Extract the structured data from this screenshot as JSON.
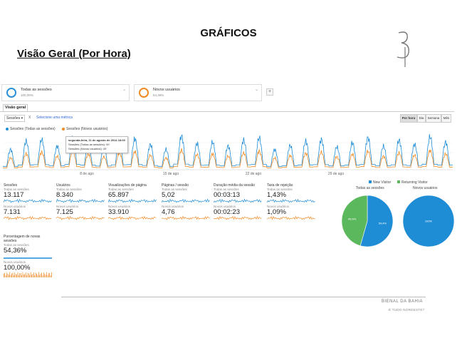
{
  "slide": {
    "title": "GRÁFICOS",
    "subtitle": "Visão Geral (Por Hora)"
  },
  "segments": [
    {
      "name": "Todas as sessões",
      "pct": "100,00%"
    },
    {
      "name": "Novos usuários",
      "pct": "54,36%"
    }
  ],
  "segment_add": "+",
  "overview_tab": "Visão geral",
  "controls": {
    "metric": "Sessões",
    "vs": "X",
    "add_metric": "Selecione uma métrica",
    "time_buttons": [
      "Por hora",
      "Dia",
      "Semana",
      "Mês"
    ],
    "active_time": "Por hora"
  },
  "legend": [
    {
      "label": "Sessões (Todas as sessões)",
      "color": "#1f8dd6"
    },
    {
      "label": "Sessões (Novos usuários)",
      "color": "#f08a24"
    }
  ],
  "tooltip": {
    "title": "segunda-feira, 11 de agosto de 2014 18:00",
    "line1": "Sessões (Todas as sessões): 00",
    "line2": "Sessões (Novos usuários): 49"
  },
  "chart_data": {
    "type": "line",
    "x_ticks": [
      "8 de ago",
      "15 de ago",
      "22 de ago",
      "29 de ago"
    ],
    "series": [
      {
        "name": "Sessões (Todas as sessões)",
        "color": "#1f8dd6",
        "approx_daily_peaks": [
          60,
          85,
          90,
          70,
          95,
          80,
          65,
          88,
          92,
          75,
          60,
          100,
          78,
          82,
          70,
          88,
          95,
          60,
          72,
          85,
          90,
          68,
          80,
          95,
          70,
          88,
          75,
          98,
          82
        ]
      },
      {
        "name": "Sessões (Novos usuários)",
        "color": "#f08a24",
        "approx_daily_peaks": [
          35,
          48,
          52,
          40,
          55,
          46,
          38,
          50,
          54,
          43,
          35,
          58,
          45,
          47,
          40,
          50,
          55,
          35,
          42,
          49,
          52,
          39,
          46,
          55,
          40,
          50,
          43,
          57,
          47
        ]
      }
    ]
  },
  "metrics": [
    {
      "label": "Sessões",
      "all_label": "Todas as sessões",
      "all_value": "13.117",
      "new_label": "Novos usuários",
      "new_value": "7.131"
    },
    {
      "label": "Usuários",
      "all_label": "Todas as sessões",
      "all_value": "8.340",
      "new_label": "Novos usuários",
      "new_value": "7.125"
    },
    {
      "label": "Visualizações de página",
      "all_label": "Todas as sessões",
      "all_value": "65.897",
      "new_label": "Novos usuários",
      "new_value": "33.910"
    },
    {
      "label": "Páginas / sessão",
      "all_label": "Todas as sessões",
      "all_value": "5,02",
      "new_label": "Novos usuários",
      "new_value": "4,76"
    },
    {
      "label": "Duração média da sessão",
      "all_label": "Todas as sessões",
      "all_value": "00:03:13",
      "new_label": "Novos usuários",
      "new_value": "00:02:23"
    },
    {
      "label": "Taxa de rejeição",
      "all_label": "Todas as sessões",
      "all_value": "1,43%",
      "new_label": "Novos usuários",
      "new_value": "1,09%"
    }
  ],
  "pct_new": {
    "label_line1": "Porcentagem de novas",
    "label_line2": "sessões",
    "all_label": "Todas as sessões",
    "all_value": "54,36%",
    "new_label": "Novos usuários",
    "new_value": "100,00%"
  },
  "pies": {
    "legend": [
      {
        "label": "New Visitor",
        "color": "#1f8dd6"
      },
      {
        "label": "Returning Visitor",
        "color": "#5cb85c"
      }
    ],
    "charts": [
      {
        "title": "Todas as sessões",
        "slices": [
          {
            "label": "54,4%",
            "value": 54.4,
            "color": "#1f8dd6"
          },
          {
            "label": "45,6%",
            "value": 45.6,
            "color": "#5cb85c"
          }
        ]
      },
      {
        "title": "Novos usuários",
        "slices": [
          {
            "label": "100%",
            "value": 100,
            "color": "#1f8dd6"
          }
        ]
      }
    ]
  },
  "footer": {
    "brand": "BIENAL DA BAHIA",
    "sub": "É TUDO NORDESTE?"
  },
  "colors": {
    "blue": "#1f8dd6",
    "orange": "#f08a24",
    "green": "#5cb85c"
  }
}
